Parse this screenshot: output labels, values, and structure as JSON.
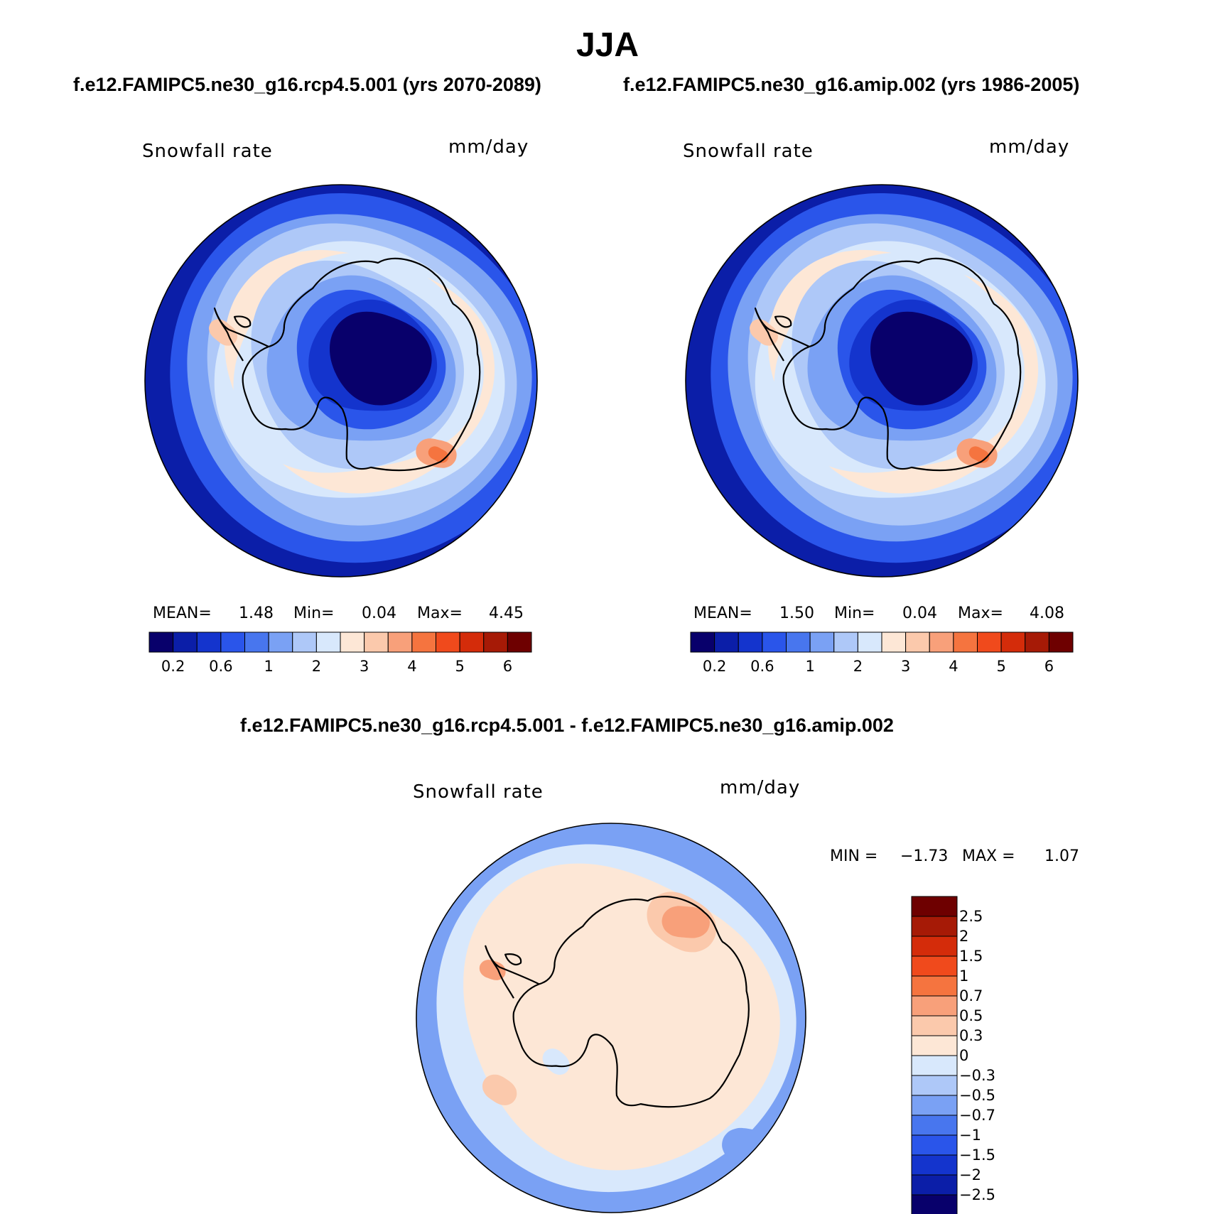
{
  "figure": {
    "title": "JJA",
    "colors": {
      "sequential": [
        "#08006b",
        "#0b1ea8",
        "#1434cd",
        "#2a55ea",
        "#4876ee",
        "#7aa1f4",
        "#aec8f8",
        "#d8e8fc",
        "#fde7d6",
        "#fbc9ac",
        "#f8a07a",
        "#f5743f",
        "#f04a1c",
        "#d42c0a",
        "#a61a06",
        "#6e0000"
      ],
      "diverging": [
        "#08006b",
        "#0b1ea8",
        "#1434cd",
        "#2a55ea",
        "#4876ee",
        "#7aa1f4",
        "#aec8f8",
        "#d8e8fc",
        "#fde7d6",
        "#fbc9ac",
        "#f8a07a",
        "#f5743f",
        "#f04a1c",
        "#d42c0a",
        "#a61a06",
        "#6e0000"
      ],
      "coastline": "#000000"
    }
  },
  "panels": [
    {
      "id": "test",
      "case_title": "f.e12.FAMIPC5.ne30_g16.rcp4.5.001 (yrs 2070-2089)",
      "variable": "Snowfall rate",
      "units": "mm/day",
      "stats": {
        "mean_label": "MEAN=",
        "mean": "1.48",
        "min_label": "Min=",
        "min": "0.04",
        "max_label": "Max=",
        "max": "4.45"
      },
      "colorbar_ticks": [
        "0.2",
        "0.6",
        "1",
        "2",
        "3",
        "4",
        "5",
        "6"
      ]
    },
    {
      "id": "control",
      "case_title": "f.e12.FAMIPC5.ne30_g16.amip.002 (yrs 1986-2005)",
      "variable": "Snowfall rate",
      "units": "mm/day",
      "stats": {
        "mean_label": "MEAN=",
        "mean": "1.50",
        "min_label": "Min=",
        "min": "0.04",
        "max_label": "Max=",
        "max": "4.08"
      },
      "colorbar_ticks": [
        "0.2",
        "0.6",
        "1",
        "2",
        "3",
        "4",
        "5",
        "6"
      ]
    },
    {
      "id": "difference",
      "case_title": "f.e12.FAMIPC5.ne30_g16.rcp4.5.001 - f.e12.FAMIPC5.ne30_g16.amip.002",
      "variable": "Snowfall rate",
      "units": "mm/day",
      "stats": {
        "min_label": "MIN =",
        "min": "−1.73",
        "max_label": "MAX =",
        "max": "1.07"
      },
      "colorbar_ticks": [
        "2.5",
        "2",
        "1.5",
        "1",
        "0.7",
        "0.5",
        "0.3",
        "0",
        "−0.3",
        "−0.5",
        "−0.7",
        "−1",
        "−1.5",
        "−2",
        "−2.5"
      ]
    }
  ]
}
